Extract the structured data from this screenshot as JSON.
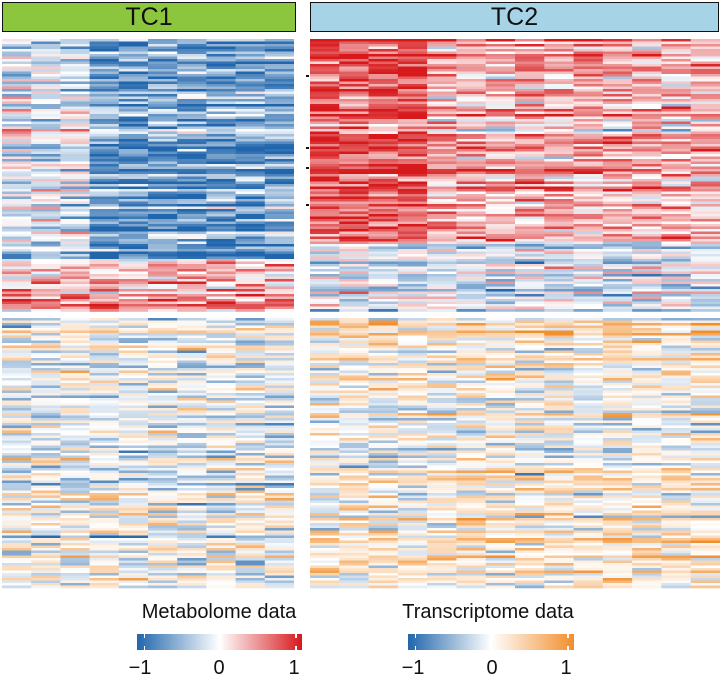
{
  "panels": [
    {
      "label": "TC1",
      "color": "#8cc63f"
    },
    {
      "label": "TC2",
      "color": "#a6d3e6"
    }
  ],
  "legends": [
    {
      "title": "Metabolome data",
      "low_color": "#2166ac",
      "mid_color": "#ffffff",
      "high_color": "#d7191c",
      "ticks": [
        "−1",
        "0",
        "1"
      ]
    },
    {
      "title": "Transcriptome data",
      "low_color": "#2166ac",
      "mid_color": "#ffffff",
      "high_color": "#f28e2b",
      "ticks": [
        "−1",
        "0",
        "1"
      ]
    }
  ],
  "chart_data": {
    "type": "heatmap",
    "panels": [
      "TC1",
      "TC2"
    ],
    "columns_per_panel": [
      10,
      14
    ],
    "row_blocks": [
      {
        "data_type": "Metabolome data",
        "value_range": [
          -1,
          1
        ],
        "color_scale": [
          "#2166ac",
          "#ffffff",
          "#d7191c"
        ]
      },
      {
        "data_type": "Transcriptome data",
        "value_range": [
          -1,
          1
        ],
        "color_scale": [
          "#2166ac",
          "#ffffff",
          "#f28e2b"
        ]
      }
    ],
    "legend_placement": "bottom"
  }
}
